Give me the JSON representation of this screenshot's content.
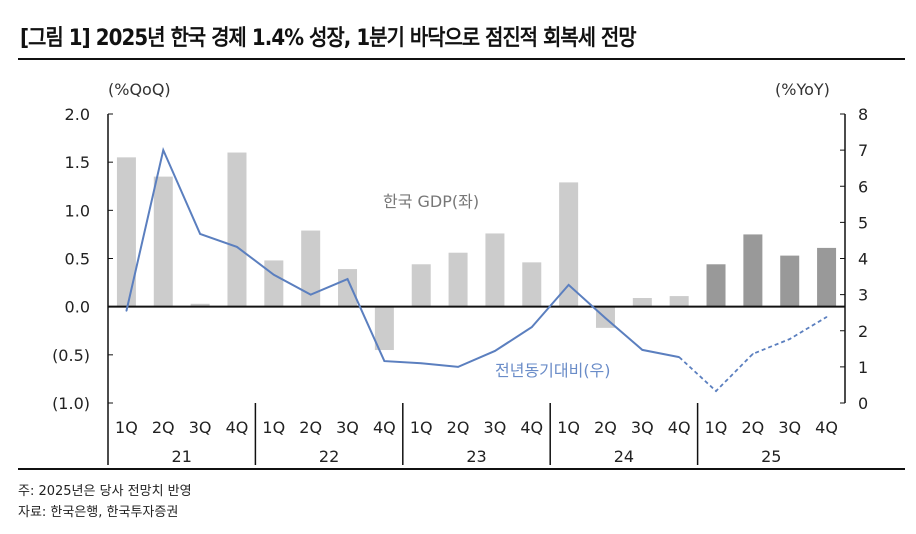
{
  "title": "[그림 1] 2025년 한국 경제 1.4% 성장, 1분기 바닥으로 점진적 회복세 전망",
  "notes": [
    "주: 2025년은 당사 전망치 반영",
    "자료: 한국은행, 한국투자증권"
  ],
  "chart_data": {
    "type": "bar+line",
    "title": "[그림 1] 2025년 한국 경제 1.4% 성장, 1분기 바닥으로 점진적 회복세 전망",
    "left_axis": {
      "label": "(%QoQ)",
      "ylim": [
        -1.0,
        2.0
      ],
      "ticks": [
        2.0,
        1.5,
        1.0,
        0.5,
        0.0,
        -0.5,
        -1.0
      ],
      "tick_labels": [
        "2.0",
        "1.5",
        "1.0",
        "0.5",
        "0.0",
        "(0.5)",
        "(1.0)"
      ]
    },
    "right_axis": {
      "label": "(%YoY)",
      "ylim": [
        0,
        8
      ],
      "ticks": [
        8,
        7,
        6,
        5,
        4,
        3,
        2,
        1,
        0
      ],
      "tick_labels": [
        "8",
        "7",
        "6",
        "5",
        "4",
        "3",
        "2",
        "1",
        "0"
      ]
    },
    "quarters": [
      "1Q",
      "2Q",
      "3Q",
      "4Q",
      "1Q",
      "2Q",
      "3Q",
      "4Q",
      "1Q",
      "2Q",
      "3Q",
      "4Q",
      "1Q",
      "2Q",
      "3Q",
      "4Q",
      "1Q",
      "2Q",
      "3Q",
      "4Q"
    ],
    "years": [
      "21",
      "22",
      "23",
      "24",
      "25"
    ],
    "series": [
      {
        "name": "한국 GDP(좌)",
        "type": "bar",
        "axis": "left",
        "values": [
          1.55,
          1.35,
          0.03,
          1.6,
          0.48,
          0.79,
          0.39,
          -0.45,
          0.44,
          0.56,
          0.76,
          0.46,
          1.29,
          -0.22,
          0.09,
          0.11,
          0.44,
          0.75,
          0.53,
          0.61
        ],
        "forecast_from_index": 16,
        "color": "#cccccc",
        "forecast_color": "#999999"
      },
      {
        "name": "전년동기대비(우)",
        "type": "line",
        "axis": "right",
        "values": [
          2.55,
          7.0,
          4.68,
          4.32,
          3.55,
          3.0,
          3.43,
          1.16,
          1.1,
          1.0,
          1.44,
          2.1,
          3.27,
          2.35,
          1.47,
          1.27,
          0.33,
          1.36,
          1.77,
          2.38
        ],
        "forecast_from_index": 15,
        "color": "#5b7fbf"
      }
    ],
    "grid": false
  }
}
